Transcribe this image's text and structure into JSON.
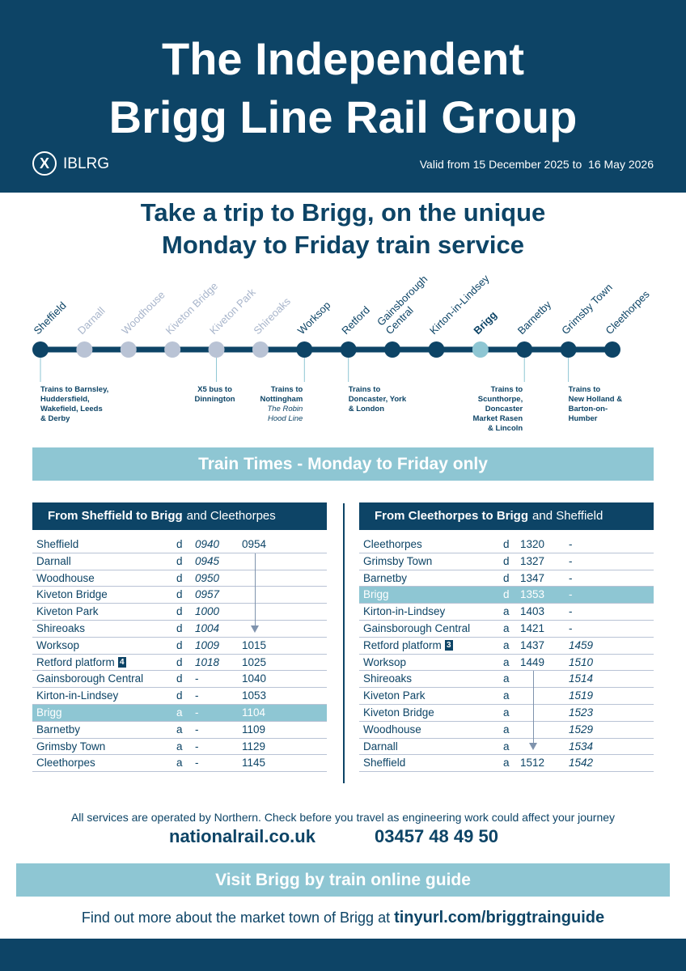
{
  "header": {
    "title": [
      "The Independent",
      "Brigg Line Rail Group"
    ],
    "logo_text": "IBLRG",
    "validity": "Valid from 15 December 2025 to  16 May 2026"
  },
  "headline": [
    "Take a trip to Brigg, on the unique",
    "Monday to Friday train service"
  ],
  "route": {
    "line_color": "#0d4466",
    "stations": [
      {
        "name": [
          "Sheffield"
        ],
        "dot_color": "#0d4466",
        "label_color": "#0d4466",
        "note": [
          "Trains to Barnsley,",
          "Huddersfield,",
          "Wakefield, Leeds",
          "& Derby"
        ]
      },
      {
        "name": [
          "Darnall"
        ],
        "dot_color": "#b9c3d5",
        "label_color": "#a8b5cb"
      },
      {
        "name": [
          "Woodhouse"
        ],
        "dot_color": "#b9c3d5",
        "label_color": "#a8b5cb"
      },
      {
        "name": [
          "Kiveton Bridge"
        ],
        "dot_color": "#b9c3d5",
        "label_color": "#a8b5cb"
      },
      {
        "name": [
          "Kiveton Park"
        ],
        "dot_color": "#b9c3d5",
        "label_color": "#a8b5cb",
        "note": [
          "X5 bus to",
          "Dinnington"
        ]
      },
      {
        "name": [
          "Shireoaks"
        ],
        "dot_color": "#b9c3d5",
        "label_color": "#a8b5cb"
      },
      {
        "name": [
          "Worksop"
        ],
        "dot_color": "#0d4466",
        "label_color": "#0d4466",
        "note": [
          "Trains to",
          "Nottingham"
        ],
        "note_italic": [
          "The Robin",
          "Hood Line"
        ]
      },
      {
        "name": [
          "Retford"
        ],
        "dot_color": "#0d4466",
        "label_color": "#0d4466",
        "note": [
          "Trains to",
          "Doncaster, York",
          "& London"
        ]
      },
      {
        "name": [
          "Gainsborough",
          "Central"
        ],
        "dot_color": "#0d4466",
        "label_color": "#0d4466"
      },
      {
        "name": [
          "Kirton-in-Lindsey"
        ],
        "dot_color": "#0d4466",
        "label_color": "#0d4466"
      },
      {
        "name": [
          "Brigg"
        ],
        "dot_color": "#8ec6d3",
        "label_color": "#0d4466",
        "bold": true
      },
      {
        "name": [
          "Barnetby"
        ],
        "dot_color": "#0d4466",
        "label_color": "#0d4466",
        "note": [
          "Trains to",
          "Scunthorpe,",
          "Doncaster",
          "Market Rasen",
          "& Lincoln"
        ]
      },
      {
        "name": [
          "Grimsby Town"
        ],
        "dot_color": "#0d4466",
        "label_color": "#0d4466",
        "note": [
          "Trains to",
          "New Holland &",
          "Barton-on-",
          "Humber"
        ]
      },
      {
        "name": [
          "Cleethorpes"
        ],
        "dot_color": "#0d4466",
        "label_color": "#0d4466"
      }
    ]
  },
  "banner": "Train Times - Monday to Friday only",
  "tables": [
    {
      "title_bold": "From Sheffield to Brigg",
      "title_rest": "and Cleethorpes",
      "highlight_color": "#8ec6d3",
      "italic_column": 0,
      "rows": [
        {
          "station": "Sheffield",
          "da": "d",
          "times": [
            "0940",
            "0954"
          ]
        },
        {
          "station": "Darnall",
          "da": "d",
          "times": [
            "0945",
            null
          ]
        },
        {
          "station": "Woodhouse",
          "da": "d",
          "times": [
            "0950",
            null
          ]
        },
        {
          "station": "Kiveton Bridge",
          "da": "d",
          "times": [
            "0957",
            null
          ]
        },
        {
          "station": "Kiveton Park",
          "da": "d",
          "times": [
            "1000",
            null
          ]
        },
        {
          "station": "Shireoaks",
          "da": "d",
          "times": [
            "1004",
            null
          ]
        },
        {
          "station": "Worksop",
          "da": "d",
          "times": [
            "1009",
            "1015"
          ]
        },
        {
          "station": "Retford",
          "platform": "platform",
          "badge": "4",
          "da": "d",
          "times": [
            "1018",
            "1025"
          ]
        },
        {
          "station": "Gainsborough Central",
          "da": "d",
          "times": [
            "-",
            "1040"
          ]
        },
        {
          "station": "Kirton-in-Lindsey",
          "da": "d",
          "times": [
            "-",
            "1053"
          ]
        },
        {
          "station": "Brigg",
          "da": "a",
          "times": [
            "-",
            "1104"
          ],
          "highlight": true
        },
        {
          "station": "Barnetby",
          "da": "a",
          "times": [
            "-",
            "1109"
          ]
        },
        {
          "station": "Grimsby Town",
          "da": "a",
          "times": [
            "-",
            "1129"
          ]
        },
        {
          "station": "Cleethorpes",
          "da": "a",
          "times": [
            "-",
            "1145"
          ]
        }
      ]
    },
    {
      "title_bold": "From Cleethorpes to Brigg",
      "title_rest": "and Sheffield",
      "highlight_color": "#8ec6d3",
      "italic_column": 1,
      "rows": [
        {
          "station": "Cleethorpes",
          "da": "d",
          "times": [
            "1320",
            "-"
          ]
        },
        {
          "station": "Grimsby Town",
          "da": "d",
          "times": [
            "1327",
            "-"
          ]
        },
        {
          "station": "Barnetby",
          "da": "d",
          "times": [
            "1347",
            "-"
          ]
        },
        {
          "station": "Brigg",
          "da": "d",
          "times": [
            "1353",
            "-"
          ],
          "highlight": true
        },
        {
          "station": "Kirton-in-Lindsey",
          "da": "a",
          "times": [
            "1403",
            "-"
          ]
        },
        {
          "station": "Gainsborough Central",
          "da": "a",
          "times": [
            "1421",
            "-"
          ]
        },
        {
          "station": "Retford",
          "platform": "platform",
          "badge": "3",
          "da": "a",
          "times": [
            "1437",
            "1459"
          ]
        },
        {
          "station": "Worksop",
          "da": "a",
          "times": [
            "1449",
            "1510"
          ]
        },
        {
          "station": "Shireoaks",
          "da": "a",
          "times": [
            null,
            "1514"
          ]
        },
        {
          "station": "Kiveton Park",
          "da": "a",
          "times": [
            null,
            "1519"
          ]
        },
        {
          "station": "Kiveton Bridge",
          "da": "a",
          "times": [
            null,
            "1523"
          ]
        },
        {
          "station": "Woodhouse",
          "da": "a",
          "times": [
            null,
            "1529"
          ]
        },
        {
          "station": "Darnall",
          "da": "a",
          "times": [
            null,
            "1534"
          ]
        },
        {
          "station": "Sheffield",
          "da": "a",
          "times": [
            "1512",
            "1542"
          ]
        }
      ]
    }
  ],
  "footer": {
    "notice": "All services are operated by Northern. Check before you travel as engineering work could affect your journey",
    "website": "nationalrail.co.uk",
    "phone": "03457 48 49 50",
    "guide_banner": "Visit Brigg by train online guide",
    "more_text": "Find out more about the market town of Brigg at",
    "more_link": "tinyurl.com/briggtrainguide"
  }
}
